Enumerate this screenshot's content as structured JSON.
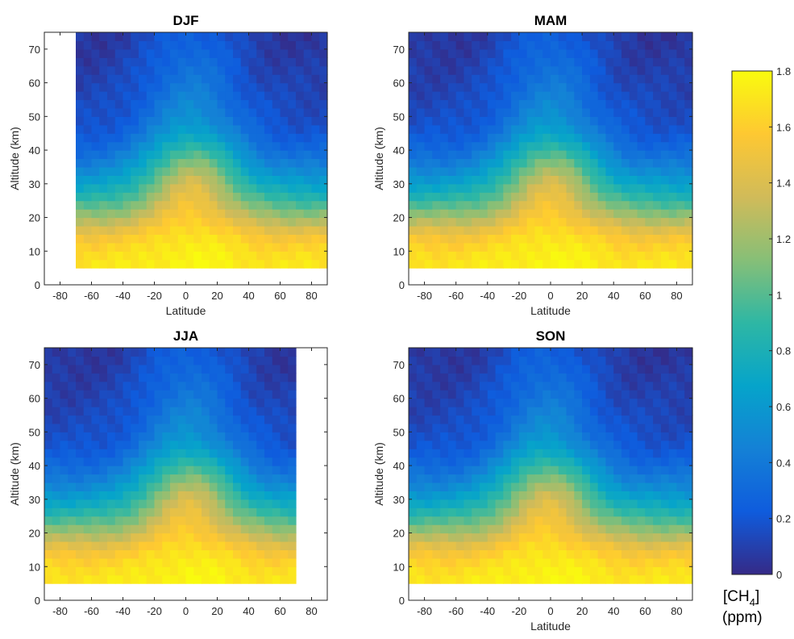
{
  "chart_data": {
    "type": "heatmap",
    "panels": [
      {
        "title": "DJF",
        "xlabel": "Latitude",
        "ylabel": "Altitude (km)",
        "xlim": [
          -90,
          90
        ],
        "ylim": [
          0,
          75
        ],
        "data_lat_range": [
          -70,
          90
        ],
        "data_alt_range": [
          5,
          75
        ],
        "xticks": [
          "-80",
          "-60",
          "-40",
          "-20",
          "0",
          "20",
          "40",
          "60",
          "80"
        ],
        "yticks": [
          "0",
          "10",
          "20",
          "30",
          "40",
          "50",
          "60",
          "70"
        ]
      },
      {
        "title": "MAM",
        "xlabel": "Latitude",
        "ylabel": "Altitude (km)",
        "xlim": [
          -90,
          90
        ],
        "ylim": [
          0,
          75
        ],
        "data_lat_range": [
          -90,
          90
        ],
        "data_alt_range": [
          5,
          75
        ],
        "xticks": [
          "-80",
          "-60",
          "-40",
          "-20",
          "0",
          "20",
          "40",
          "60",
          "80"
        ],
        "yticks": [
          "0",
          "10",
          "20",
          "30",
          "40",
          "50",
          "60",
          "70"
        ]
      },
      {
        "title": "JJA",
        "xlabel": "",
        "ylabel": "Altitude (km)",
        "xlim": [
          -90,
          90
        ],
        "ylim": [
          0,
          75
        ],
        "data_lat_range": [
          -90,
          70
        ],
        "data_alt_range": [
          5,
          75
        ],
        "xticks": [
          "-80",
          "-60",
          "-40",
          "-20",
          "0",
          "20",
          "40",
          "60",
          "80"
        ],
        "yticks": [
          "0",
          "10",
          "20",
          "30",
          "40",
          "50",
          "60",
          "70"
        ]
      },
      {
        "title": "SON",
        "xlabel": "Latitude",
        "ylabel": "Altitude (km)",
        "xlim": [
          -90,
          90
        ],
        "ylim": [
          0,
          75
        ],
        "data_lat_range": [
          -90,
          90
        ],
        "data_alt_range": [
          5,
          75
        ],
        "xticks": [
          "-80",
          "-60",
          "-40",
          "-20",
          "0",
          "20",
          "40",
          "60",
          "80"
        ],
        "yticks": [
          "0",
          "10",
          "20",
          "30",
          "40",
          "50",
          "60",
          "70"
        ]
      }
    ],
    "colorbar": {
      "label_main": "[CH",
      "label_sub": "4",
      "label_close": "]",
      "label_unit": "(ppm)",
      "range": [
        0,
        1.8
      ],
      "ticks": [
        "0",
        "0.2",
        "0.4",
        "0.6",
        "0.8",
        "1",
        "1.2",
        "1.4",
        "1.6",
        "1.8"
      ],
      "colormap": "parula",
      "stops": [
        "#352a87",
        "#0f5cdd",
        "#1481d6",
        "#06a4ca",
        "#2eb7a4",
        "#87bf77",
        "#d1bb59",
        "#fec832",
        "#f9fb0e"
      ]
    },
    "profile_ppm": {
      "altitude_km": [
        5,
        10,
        15,
        20,
        25,
        30,
        35,
        40,
        45,
        50,
        60,
        70,
        75
      ],
      "equator": [
        1.78,
        1.76,
        1.7,
        1.6,
        1.5,
        1.4,
        1.2,
        0.95,
        0.7,
        0.55,
        0.4,
        0.3,
        0.25
      ],
      "high_latitude": [
        1.72,
        1.65,
        1.5,
        1.2,
        0.9,
        0.65,
        0.45,
        0.3,
        0.2,
        0.15,
        0.1,
        0.06,
        0.05
      ]
    }
  }
}
